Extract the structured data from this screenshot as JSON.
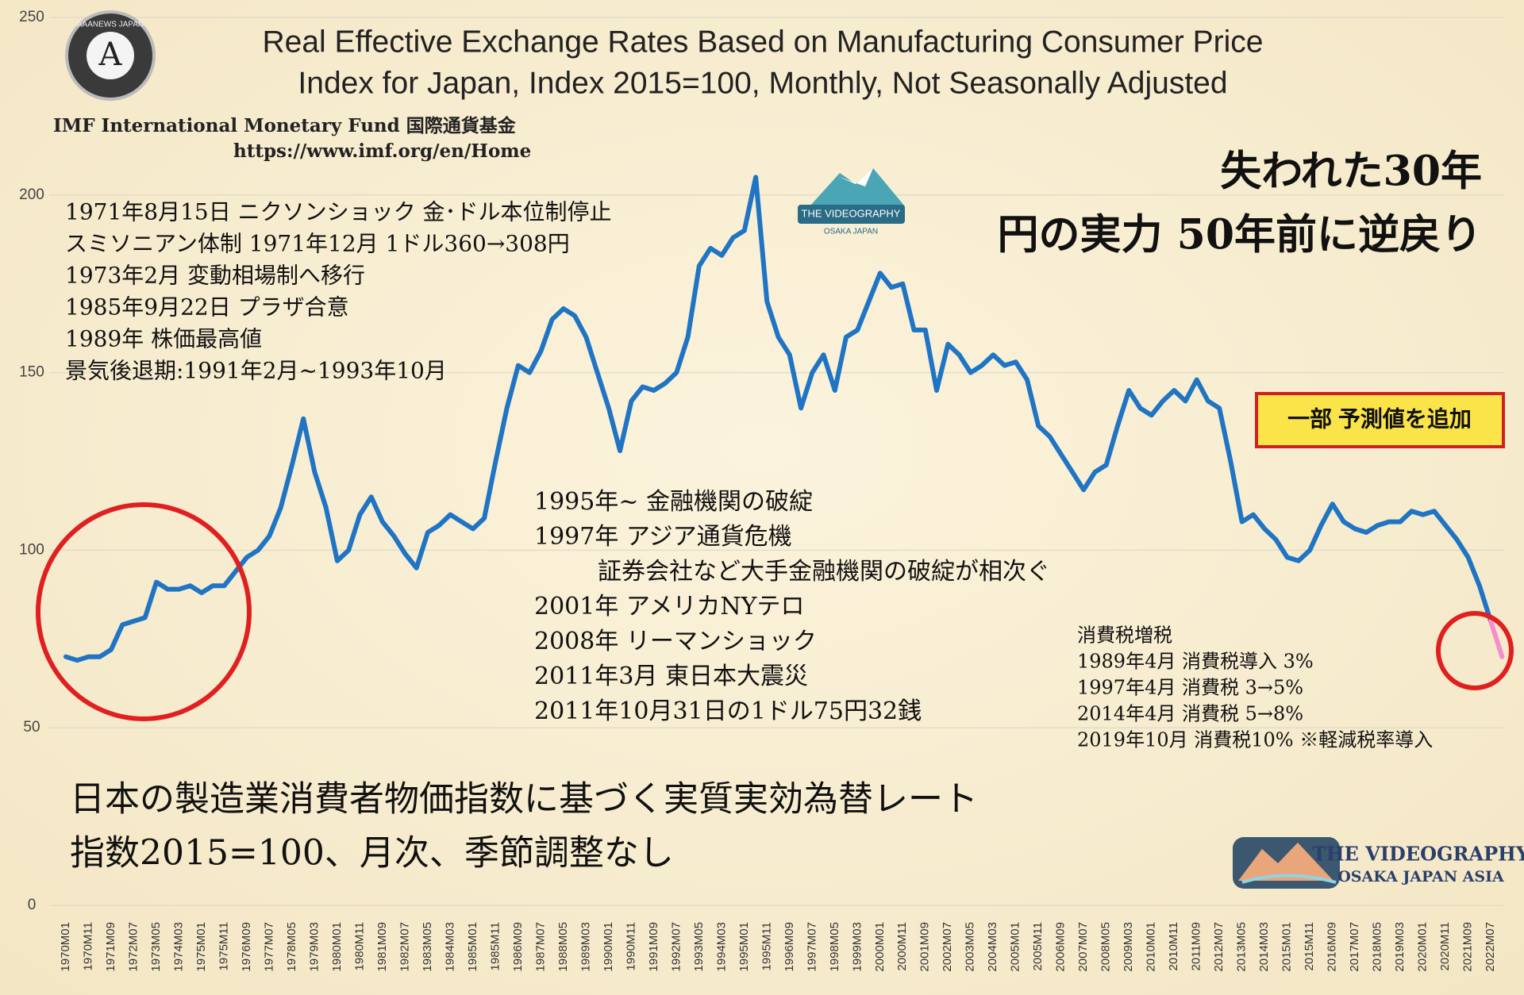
{
  "chart_data": {
    "type": "line",
    "title": [
      "Real Effective Exchange Rates Based on Manufacturing Consumer Price",
      "Index for Japan, Index 2015=100, Monthly, Not Seasonally Adjusted"
    ],
    "source": [
      "IMF International Monetary Fund 国際通貨基金",
      "https://www.imf.org/en/Home"
    ],
    "headline": [
      "失われた30年",
      "円の実力 50年前に逆戻り"
    ],
    "forecast_note": "一部 予測値を追加",
    "events_early": [
      "1971年8月15日 ニクソンショック 金･ドル本位制停止",
      "スミソニアン体制 1971年12月 1ドル360→308円",
      "1973年2月 変動相場制へ移行",
      "1985年9月22日 プラザ合意",
      "1989年 株価最高値",
      "景気後退期:1991年2月~1993年10月"
    ],
    "events_later": [
      "1995年~ 金融機関の破綻",
      "1997年 アジア通貨危機",
      "証券会社など大手金融機関の破綻が相次ぐ",
      "2001年 アメリカNYテロ",
      "2008年 リーマンショック",
      "2011年3月 東日本大震災",
      "2011年10月31日の1ドル75円32銭"
    ],
    "tax_notes": [
      "消費税増税",
      "1989年4月 消費税導入 3%",
      "1997年4月 消費税 3→5%",
      "2014年4月 消費税 5→8%",
      "2019年10月 消費税10% ※軽減税率導入"
    ],
    "japanese_title": [
      "日本の製造業消費者物価指数に基づく実質実効為替レート",
      "指数2015=100、月次、季節調整なし"
    ],
    "logos": {
      "top_left": "AAANEWS JAPAN",
      "center": [
        "THE VIDEOGRAPHY",
        "OSAKA JAPAN"
      ],
      "bottom_right": [
        "THE VIDEOGRAPHY",
        "OSAKA JAPAN ASIA"
      ]
    },
    "categories": [
      "1970M01",
      null,
      "1970M11",
      null,
      "1971M09",
      null,
      "1972M07",
      null,
      "1973M05",
      null,
      "1974M03",
      null,
      "1975M01",
      null,
      "1975M11",
      null,
      "1976M09",
      null,
      "1977M07",
      null,
      "1978M05",
      null,
      "1979M03",
      null,
      "1980M01",
      null,
      "1980M11",
      null,
      "1981M09",
      null,
      "1982M07",
      null,
      "1983M05",
      null,
      "1984M03",
      null,
      "1985M01",
      null,
      "1985M11",
      null,
      "1986M09",
      null,
      "1987M07",
      null,
      "1988M05",
      null,
      "1989M03",
      null,
      "1990M01",
      null,
      "1990M11",
      null,
      "1991M09",
      null,
      "1992M07",
      null,
      "1993M05",
      null,
      "1994M03",
      null,
      "1995M01",
      null,
      "1995M11",
      null,
      "1996M09",
      null,
      "1997M07",
      null,
      "1998M05",
      null,
      "1999M03",
      null,
      "2000M01",
      null,
      "2000M11",
      null,
      "2001M09",
      null,
      "2002M07",
      null,
      "2003M05",
      null,
      "2004M03",
      null,
      "2005M01",
      null,
      "2005M11",
      null,
      "2006M09",
      null,
      "2007M07",
      null,
      "2008M05",
      null,
      "2009M03",
      null,
      "2010M01",
      null,
      "2010M11",
      null,
      "2011M09",
      null,
      "2012M07",
      null,
      "2013M05",
      null,
      "2014M03",
      null,
      "2015M01",
      null,
      "2015M11",
      null,
      "2016M09",
      null,
      "2017M07",
      null,
      "2018M05",
      null,
      "2019M03",
      null,
      "2020M01",
      null,
      "2020M11",
      null,
      "2021M09",
      null,
      "2022M07",
      null
    ],
    "series": [
      {
        "color": "#1f74c4",
        "values": [
          70,
          69,
          70,
          70,
          72,
          79,
          80,
          81,
          91,
          89,
          89,
          90,
          88,
          90,
          90,
          94,
          98,
          100,
          104,
          112,
          124,
          137,
          122,
          112,
          97,
          100,
          110,
          115,
          108,
          104,
          99,
          95,
          105,
          107,
          110,
          108,
          106,
          109,
          125,
          140,
          152,
          150,
          156,
          165,
          168,
          166,
          160,
          150,
          140,
          128,
          142,
          146,
          145,
          147,
          150,
          160,
          180,
          185,
          183,
          188,
          190,
          205,
          170,
          160,
          155,
          140,
          150,
          155,
          145,
          160,
          162,
          170,
          178,
          174,
          175,
          162,
          162,
          145,
          158,
          155,
          150,
          152,
          155,
          152,
          153,
          148,
          135,
          132,
          127,
          122,
          117,
          122,
          124,
          135,
          145,
          140,
          138,
          142,
          145,
          142,
          148,
          142,
          140,
          125,
          108,
          110,
          106,
          103,
          98,
          97,
          100,
          107,
          113,
          108,
          106,
          105,
          107,
          108,
          108,
          111,
          110,
          111,
          107,
          103,
          98,
          90,
          80,
          null
        ]
      },
      {
        "color": "#f48fcb",
        "values": [
          null,
          null,
          null,
          null,
          null,
          null,
          null,
          null,
          null,
          null,
          null,
          null,
          null,
          null,
          null,
          null,
          null,
          null,
          null,
          null,
          null,
          null,
          null,
          null,
          null,
          null,
          null,
          null,
          null,
          null,
          null,
          null,
          null,
          null,
          null,
          null,
          null,
          null,
          null,
          null,
          null,
          null,
          null,
          null,
          null,
          null,
          null,
          null,
          null,
          null,
          null,
          null,
          null,
          null,
          null,
          null,
          null,
          null,
          null,
          null,
          null,
          null,
          null,
          null,
          null,
          null,
          null,
          null,
          null,
          null,
          null,
          null,
          null,
          null,
          null,
          null,
          null,
          null,
          null,
          null,
          null,
          null,
          null,
          null,
          null,
          null,
          null,
          null,
          null,
          null,
          null,
          null,
          null,
          null,
          null,
          null,
          null,
          null,
          null,
          null,
          null,
          null,
          null,
          null,
          null,
          null,
          null,
          null,
          null,
          null,
          null,
          null,
          null,
          null,
          null,
          null,
          null,
          null,
          null,
          null,
          null,
          null,
          null,
          null,
          null,
          null,
          80,
          70
        ]
      }
    ],
    "ylim": [
      0,
      250
    ],
    "yticks": [
      0,
      50,
      100,
      150,
      200,
      250
    ],
    "grid": true
  }
}
